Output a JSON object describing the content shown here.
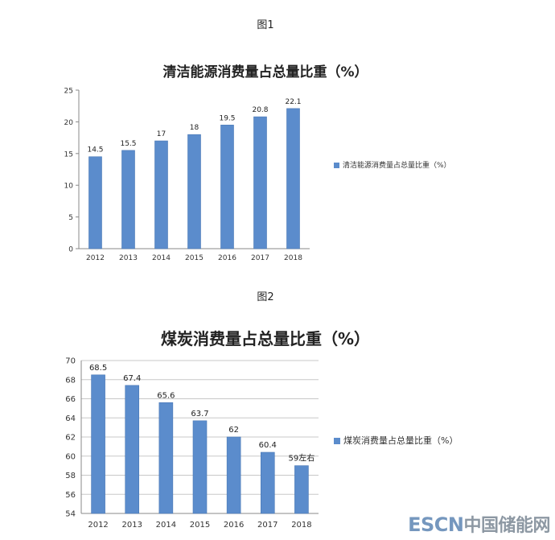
{
  "figures": [
    {
      "label": "图1",
      "title": "清洁能源消费量占总量比重（%）"
    },
    {
      "label": "图2",
      "title": "煤炭消费量占总量比重（%）"
    }
  ],
  "colors": {
    "bar": "#5b8ccc",
    "bar_stroke": "#4a78b5",
    "grid": "#c8c8c8",
    "axis": "#888888"
  },
  "watermark": {
    "escn": "ESCN",
    "cn": "中国储能网"
  },
  "chart_data": [
    {
      "type": "bar",
      "title": "清洁能源消费量占总量比重（%）",
      "categories": [
        "2012",
        "2013",
        "2014",
        "2015",
        "2016",
        "2017",
        "2018"
      ],
      "series": [
        {
          "name": "清洁能源消费量占总量比重（%）",
          "values": [
            14.5,
            15.5,
            17,
            18,
            19.5,
            20.8,
            22.1
          ]
        }
      ],
      "data_labels": [
        "14.5",
        "15.5",
        "17",
        "18",
        "19.5",
        "20.8",
        "22.1"
      ],
      "ylim": [
        0,
        25
      ],
      "yticks": [
        0,
        5,
        10,
        15,
        20,
        25
      ],
      "grid": false,
      "legend_position": "right"
    },
    {
      "type": "bar",
      "title": "煤炭消费量占总量比重（%）",
      "categories": [
        "2012",
        "2013",
        "2014",
        "2015",
        "2016",
        "2017",
        "2018"
      ],
      "series": [
        {
          "name": "煤炭消费量占总量比重（%）",
          "values": [
            68.5,
            67.4,
            65.6,
            63.7,
            62,
            60.4,
            59
          ]
        }
      ],
      "data_labels": [
        "68.5",
        "67.4",
        "65.6",
        "63.7",
        "62",
        "60.4",
        "59左右"
      ],
      "ylim": [
        54,
        70
      ],
      "yticks": [
        54,
        56,
        58,
        60,
        62,
        64,
        66,
        68,
        70
      ],
      "grid": true,
      "legend_position": "right"
    }
  ]
}
